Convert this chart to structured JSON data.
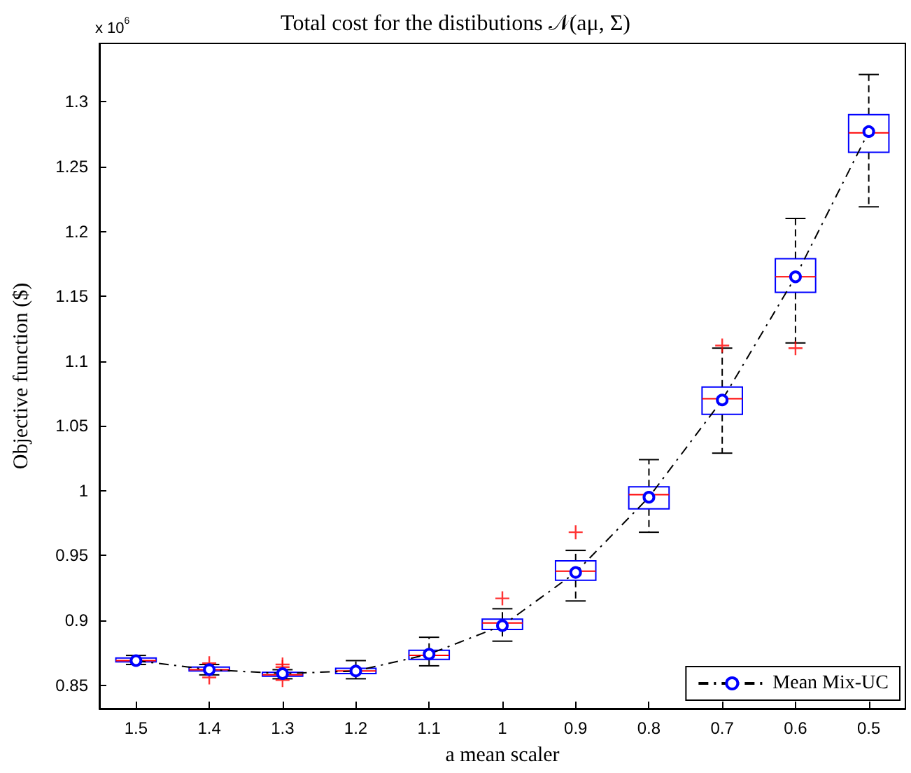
{
  "chart_data": {
    "type": "box",
    "title": "Total cost for the distibutions 𝒩(aμ, Σ)",
    "xlabel": "a mean scaler",
    "ylabel": "Objective function ($)",
    "annotations": [
      "x 10$^{6}$"
    ],
    "categories": [
      "1.5",
      "1.4",
      "1.3",
      "1.2",
      "1.1",
      "1",
      "0.9",
      "0.8",
      "0.7",
      "0.6",
      "0.5"
    ],
    "boxes": [
      {
        "low": 0.866,
        "q1": 0.868,
        "median": 0.869,
        "q3": 0.871,
        "high": 0.873
      },
      {
        "low": 0.858,
        "q1": 0.861,
        "median": 0.862,
        "q3": 0.864,
        "high": 0.866,
        "outliers": [
          0.867,
          0.856
        ]
      },
      {
        "low": 0.855,
        "q1": 0.857,
        "median": 0.858,
        "q3": 0.86,
        "high": 0.862,
        "outliers": [
          0.866,
          0.864,
          0.854
        ]
      },
      {
        "low": 0.855,
        "q1": 0.859,
        "median": 0.861,
        "q3": 0.863,
        "high": 0.869
      },
      {
        "low": 0.865,
        "q1": 0.87,
        "median": 0.873,
        "q3": 0.877,
        "high": 0.887
      },
      {
        "low": 0.884,
        "q1": 0.893,
        "median": 0.898,
        "q3": 0.901,
        "high": 0.909,
        "outliers": [
          0.917
        ]
      },
      {
        "low": 0.915,
        "q1": 0.931,
        "median": 0.938,
        "q3": 0.946,
        "high": 0.954,
        "outliers": [
          0.968
        ]
      },
      {
        "low": 0.968,
        "q1": 0.986,
        "median": 0.997,
        "q3": 1.003,
        "high": 1.024
      },
      {
        "low": 1.029,
        "q1": 1.059,
        "median": 1.071,
        "q3": 1.08,
        "high": 1.11,
        "outliers": [
          1.112
        ]
      },
      {
        "low": 1.114,
        "q1": 1.153,
        "median": 1.165,
        "q3": 1.179,
        "high": 1.21,
        "outliers": [
          1.11
        ]
      },
      {
        "low": 1.219,
        "q1": 1.261,
        "median": 1.276,
        "q3": 1.29,
        "high": 1.321
      }
    ],
    "series": [
      {
        "type": "line",
        "name": "Mean Mix-UC",
        "color": "#000000",
        "values": [
          0.869,
          0.862,
          0.859,
          0.861,
          0.874,
          0.896,
          0.937,
          0.995,
          1.07,
          1.165,
          1.277
        ]
      }
    ],
    "ylim": [
      0.832,
      1.345
    ],
    "yticks": [
      0.85,
      0.9,
      0.95,
      1,
      1.05,
      1.1,
      1.15,
      1.2,
      1.25,
      1.3
    ],
    "grid": false,
    "legend": "bottom right",
    "marker": "circle",
    "line_style": "dashed"
  }
}
